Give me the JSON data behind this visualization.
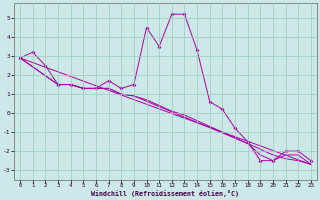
{
  "xlabel": "Windchill (Refroidissement éolien,°C)",
  "bg_color": "#cce8e8",
  "line_color": "#aa00aa",
  "grid_color": "#99ccbb",
  "xlim": [
    -0.5,
    23.5
  ],
  "ylim": [
    -3.5,
    5.8
  ],
  "yticks": [
    -3,
    -2,
    -1,
    0,
    1,
    2,
    3,
    4,
    5
  ],
  "xticks": [
    0,
    1,
    2,
    3,
    4,
    5,
    6,
    7,
    8,
    9,
    10,
    11,
    12,
    13,
    14,
    15,
    16,
    17,
    18,
    19,
    20,
    21,
    22,
    23
  ],
  "s1x": [
    0,
    1,
    2,
    3,
    4,
    5,
    6,
    7,
    8,
    9,
    10,
    11,
    12,
    13,
    14,
    15,
    16,
    17,
    18,
    19,
    20,
    21,
    22,
    23
  ],
  "s1y": [
    2.9,
    3.2,
    2.5,
    1.5,
    1.5,
    1.3,
    1.3,
    1.7,
    1.3,
    1.5,
    4.5,
    3.5,
    5.2,
    5.2,
    3.3,
    0.6,
    0.2,
    -0.8,
    -1.5,
    -2.5,
    -2.5,
    -2.0,
    -2.0,
    -2.5
  ],
  "s2x": [
    0,
    3,
    4,
    5,
    6,
    7,
    8,
    9,
    18,
    19,
    20,
    21,
    22,
    23
  ],
  "s2y": [
    2.9,
    1.5,
    1.5,
    1.3,
    1.3,
    1.3,
    1.0,
    0.9,
    -1.6,
    -2.2,
    -2.5,
    -2.2,
    -2.2,
    -2.7
  ],
  "s3x": [
    0,
    23
  ],
  "s3y": [
    2.9,
    -2.7
  ],
  "s4x": [
    0,
    3,
    4,
    5,
    6,
    7,
    8,
    9,
    10,
    11,
    12,
    13,
    14,
    15,
    16,
    17,
    18,
    19,
    20,
    21,
    22,
    23
  ],
  "s4y": [
    2.9,
    1.5,
    1.5,
    1.3,
    1.3,
    1.3,
    1.0,
    0.9,
    0.7,
    0.4,
    0.1,
    -0.1,
    -0.4,
    -0.7,
    -1.0,
    -1.3,
    -1.6,
    -1.9,
    -2.2,
    -2.4,
    -2.5,
    -2.7
  ]
}
